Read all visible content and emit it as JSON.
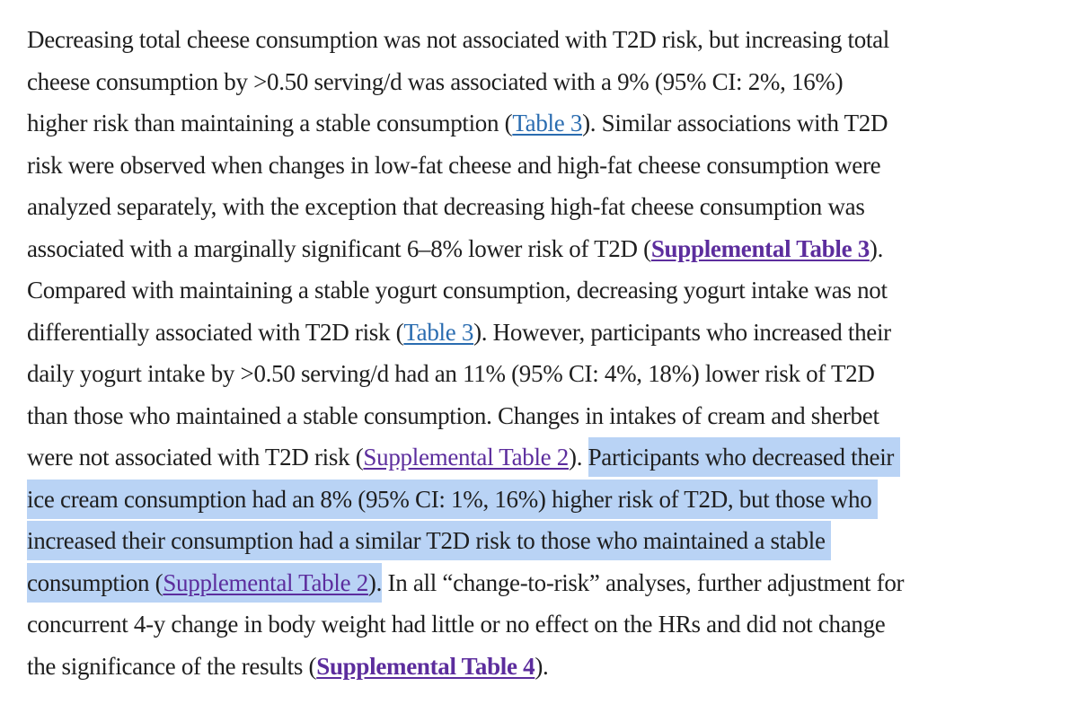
{
  "colors": {
    "text": "#1f1f1f",
    "link_blue": "#2a6cb0",
    "link_purple": "#5c2d9d",
    "highlight": "#b9d3f5",
    "background": "#ffffff"
  },
  "paragraph": {
    "lines": [
      {
        "segments": [
          {
            "text": "Decreasing total cheese consumption was not associated with T2D risk, but increasing total"
          }
        ]
      },
      {
        "segments": [
          {
            "text": "cheese consumption by >0.50 serving/d was associated with a 9% (95% CI: 2%, 16%)"
          }
        ]
      },
      {
        "segments": [
          {
            "text": "higher risk than maintaining a stable consumption ("
          },
          {
            "text": "Table 3",
            "link": "blue",
            "name": "table-3-link-1"
          },
          {
            "text": "). Similar associations with T2D"
          }
        ]
      },
      {
        "segments": [
          {
            "text": "risk were observed when changes in low-fat cheese and high-fat cheese consumption were"
          }
        ]
      },
      {
        "segments": [
          {
            "text": "analyzed separately, with the exception that decreasing high-fat cheese consumption was"
          }
        ]
      },
      {
        "segments": [
          {
            "text": "associated with a marginally significant 6–8% lower risk of T2D ("
          },
          {
            "text": "Supplemental Table 3",
            "link": "purple-bold",
            "name": "supplemental-table-3-link"
          },
          {
            "text": ")."
          }
        ]
      },
      {
        "segments": [
          {
            "text": "Compared with maintaining a stable yogurt consumption, decreasing yogurt intake was not"
          }
        ]
      },
      {
        "segments": [
          {
            "text": "differentially associated with T2D risk ("
          },
          {
            "text": "Table 3",
            "link": "blue",
            "name": "table-3-link-2"
          },
          {
            "text": "). However, participants who increased their"
          }
        ]
      },
      {
        "segments": [
          {
            "text": "daily yogurt intake by >0.50 serving/d had an 11% (95% CI: 4%, 18%) lower risk of T2D"
          }
        ]
      },
      {
        "segments": [
          {
            "text": "than those who maintained a stable consumption. Changes in intakes of cream and sherbet"
          }
        ]
      },
      {
        "segments": [
          {
            "text": "were not associated with T2D risk ("
          },
          {
            "text": "Supplemental Table 2",
            "link": "purple",
            "name": "supplemental-table-2-link-1"
          },
          {
            "text": "). "
          },
          {
            "text": "Participants who decreased their ",
            "highlight": true
          }
        ]
      },
      {
        "segments": [
          {
            "text": "ice cream consumption had an 8% (95% CI: 1%, 16%) higher risk of T2D, but those who ",
            "highlight": true
          }
        ]
      },
      {
        "segments": [
          {
            "text": "increased their consumption had a similar T2D risk to those who maintained a stable ",
            "highlight": true
          }
        ]
      },
      {
        "segments": [
          {
            "text": "consumption (",
            "highlight": true
          },
          {
            "text": "Supplemental Table 2",
            "link": "purple",
            "highlight": true,
            "name": "supplemental-table-2-link-2"
          },
          {
            "text": ").",
            "highlight": true
          },
          {
            "text": " In all “change-to-risk” analyses, further adjustment for"
          }
        ]
      },
      {
        "segments": [
          {
            "text": "concurrent 4-y change in body weight had little or no effect on the HRs and did not change"
          }
        ]
      },
      {
        "segments": [
          {
            "text": "the significance of the results ("
          },
          {
            "text": "Supplemental Table 4",
            "link": "purple-bold",
            "name": "supplemental-table-4-link"
          },
          {
            "text": ")."
          }
        ]
      }
    ]
  }
}
